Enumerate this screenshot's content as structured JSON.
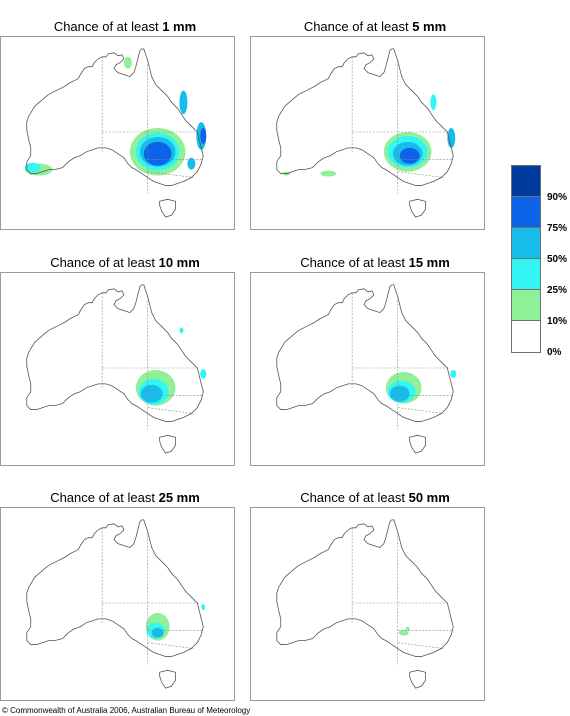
{
  "panels": [
    {
      "prefix": "Chance of at least ",
      "amount": "1 mm"
    },
    {
      "prefix": "Chance of at least ",
      "amount": "5 mm"
    },
    {
      "prefix": "Chance of at least ",
      "amount": "10 mm"
    },
    {
      "prefix": "Chance of at least ",
      "amount": "15 mm"
    },
    {
      "prefix": "Chance of at least ",
      "amount": "25 mm"
    },
    {
      "prefix": "Chance of at least ",
      "amount": "50 mm"
    }
  ],
  "legend": {
    "labels": [
      "90%",
      "75%",
      "50%",
      "25%",
      "10%",
      "0%"
    ],
    "colors": [
      "#003a9c",
      "#0a63e8",
      "#18bcea",
      "#33f5f2",
      "#8ff098",
      "#ffffff"
    ]
  },
  "footer": "© Commonwealth of Australia 2006, Australian Bureau of Meteorology"
}
